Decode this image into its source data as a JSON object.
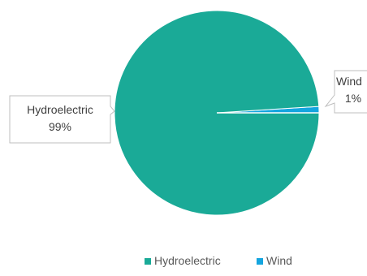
{
  "chart_data": {
    "type": "pie",
    "title": "",
    "categories": [
      "Hydroelectric",
      "Wind"
    ],
    "values": [
      99,
      1
    ],
    "value_labels": [
      "99%",
      "1%"
    ],
    "colors": [
      "#1AAA97",
      "#14A5DF"
    ],
    "legend_position": "bottom",
    "start_angle_note": "clockwise from east"
  }
}
